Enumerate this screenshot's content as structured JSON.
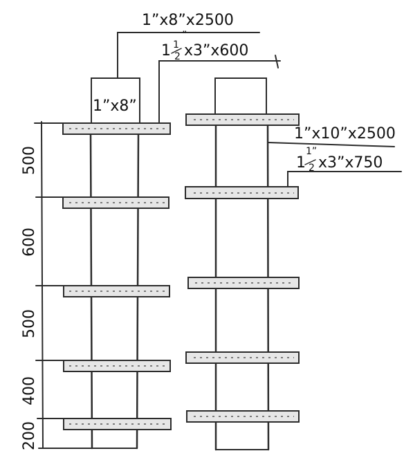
{
  "labels": {
    "top_board": "1”x8”x2500",
    "top_board_size": "1”x8”",
    "top_batten_whole": "1",
    "top_batten_num": "1",
    "top_batten_den": "2",
    "top_batten_rest": "x3”x600",
    "right_board": "1”x10”x2500",
    "right_batten_whole": "1",
    "right_batten_num": "1”",
    "right_batten_den": "2",
    "right_batten_rest": "x3”x750",
    "inch_mark": "”"
  },
  "dimensions": [
    "500",
    "600",
    "500",
    "400",
    "200"
  ],
  "colors": {
    "ink": "#2b2b2b",
    "board_fill": "#e6e6e6",
    "paper": "#ffffff"
  }
}
